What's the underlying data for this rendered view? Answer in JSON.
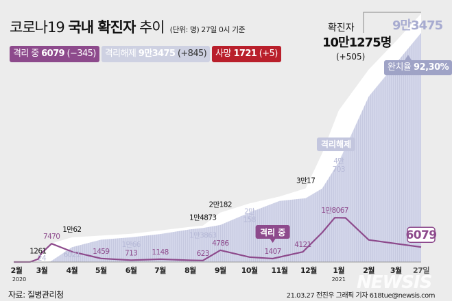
{
  "header": {
    "title_light": "코로나19",
    "title_bold": "국내 확진자",
    "title_tail": "추이",
    "unit": "(단위: 명) 27일 0시 기준"
  },
  "legend": {
    "isolating": {
      "label": "격리 중",
      "value": "6079",
      "change": "(−345)",
      "color": "#8d4a8c"
    },
    "released": {
      "label": "격리해제",
      "value": "9만3475",
      "change": "(+845)",
      "color": "#ced1e2"
    },
    "deaths": {
      "label": "사망",
      "value": "1721",
      "change": "(+5)",
      "color": "#b91f2b"
    }
  },
  "summary": {
    "confirmed_label": "확진자",
    "confirmed_value": "10만1275명",
    "confirmed_change": "(+505)",
    "released_value": "9만3475",
    "cure_rate_label": "완치율",
    "cure_rate_value": "92,30%"
  },
  "chart_data": {
    "type": "area",
    "x_ticks": [
      {
        "date": "2020-02-01",
        "label": "2월"
      },
      {
        "date": "2020-03-01",
        "label": "3월"
      },
      {
        "date": "2020-04-01",
        "label": "4월"
      },
      {
        "date": "2020-05-01",
        "label": "5월"
      },
      {
        "date": "2020-06-01",
        "label": "6월"
      },
      {
        "date": "2020-07-01",
        "label": "7월"
      },
      {
        "date": "2020-08-01",
        "label": "8월"
      },
      {
        "date": "2020-09-01",
        "label": "9월"
      },
      {
        "date": "2020-10-01",
        "label": "10월"
      },
      {
        "date": "2020-11-01",
        "label": "11월"
      },
      {
        "date": "2020-12-01",
        "label": "12월"
      },
      {
        "date": "2021-01-01",
        "label": "1월"
      },
      {
        "date": "2021-02-01",
        "label": "2월"
      },
      {
        "date": "2021-03-01",
        "label": "3월"
      },
      {
        "date": "2021-03-27",
        "label": "27일"
      }
    ],
    "year_labels": [
      {
        "date": "2020-02-01",
        "label": "2020"
      },
      {
        "date": "2021-01-01",
        "label": "2021"
      }
    ],
    "x_range": [
      "2020-02-01",
      "2021-03-27"
    ],
    "y_range": [
      0,
      101275
    ],
    "series": [
      {
        "key": "confirmed",
        "color": "#ffffff",
        "points": [
          [
            "2020-02-01",
            0
          ],
          [
            "2020-02-18",
            31
          ],
          [
            "2020-02-26",
            1261
          ],
          [
            "2020-03-01",
            3736
          ],
          [
            "2020-03-10",
            7513
          ],
          [
            "2020-04-01",
            10062
          ],
          [
            "2020-05-01",
            10774
          ],
          [
            "2020-06-01",
            11503
          ],
          [
            "2020-07-01",
            12850
          ],
          [
            "2020-08-01",
            14336
          ],
          [
            "2020-08-14",
            14873
          ],
          [
            "2020-09-01",
            20182
          ],
          [
            "2020-10-01",
            23889
          ],
          [
            "2020-11-01",
            26732
          ],
          [
            "2020-11-28",
            30017
          ],
          [
            "2020-12-15",
            44364
          ],
          [
            "2021-01-01",
            61769
          ],
          [
            "2021-02-01",
            78508
          ],
          [
            "2021-03-01",
            90029
          ],
          [
            "2021-03-27",
            101275
          ]
        ]
      },
      {
        "key": "released",
        "color": "#d3d6ea",
        "points": [
          [
            "2020-02-01",
            0
          ],
          [
            "2020-03-01",
            24
          ],
          [
            "2020-03-10",
            200
          ],
          [
            "2020-04-01",
            6021
          ],
          [
            "2020-05-01",
            9100
          ],
          [
            "2020-06-01",
            10066
          ],
          [
            "2020-07-01",
            11400
          ],
          [
            "2020-08-01",
            13300
          ],
          [
            "2020-08-14",
            13863
          ],
          [
            "2020-09-01",
            15100
          ],
          [
            "2020-10-01",
            20158
          ],
          [
            "2020-11-01",
            24900
          ],
          [
            "2020-11-28",
            26000
          ],
          [
            "2020-12-15",
            30000
          ],
          [
            "2021-01-01",
            40703
          ],
          [
            "2021-02-01",
            67500
          ],
          [
            "2021-03-01",
            81000
          ],
          [
            "2021-03-27",
            93475
          ]
        ]
      },
      {
        "key": "isolating",
        "color": "#8d4a8c",
        "points": [
          [
            "2020-02-01",
            0
          ],
          [
            "2020-02-18",
            19
          ],
          [
            "2020-02-26",
            1170
          ],
          [
            "2020-03-01",
            3700
          ],
          [
            "2020-03-11",
            7470
          ],
          [
            "2020-04-01",
            4200
          ],
          [
            "2020-05-01",
            1459
          ],
          [
            "2020-06-01",
            713
          ],
          [
            "2020-07-01",
            1148
          ],
          [
            "2020-08-01",
            700
          ],
          [
            "2020-08-14",
            623
          ],
          [
            "2020-09-01",
            4786
          ],
          [
            "2020-10-01",
            2000
          ],
          [
            "2020-10-25",
            1407
          ],
          [
            "2020-11-25",
            4121
          ],
          [
            "2020-12-15",
            12000
          ],
          [
            "2020-12-28",
            18067
          ],
          [
            "2021-01-08",
            18000
          ],
          [
            "2021-02-01",
            9000
          ],
          [
            "2021-03-01",
            7500
          ],
          [
            "2021-03-27",
            6079
          ]
        ]
      }
    ],
    "annotations": [
      {
        "series": "confirmed",
        "date": "2020-02-26",
        "text": "1261"
      },
      {
        "series": "confirmed",
        "date": "2020-04-01",
        "text": "1만62"
      },
      {
        "series": "confirmed",
        "date": "2020-08-14",
        "text": "1만4873"
      },
      {
        "series": "confirmed",
        "date": "2020-09-01",
        "text": "2만182"
      },
      {
        "series": "confirmed",
        "date": "2020-11-28",
        "text": "3만17"
      },
      {
        "series": "released",
        "date": "2020-03-01",
        "text": "24"
      },
      {
        "series": "released",
        "date": "2020-04-01",
        "text": "6021"
      },
      {
        "series": "released",
        "date": "2020-06-01",
        "text": "1만66"
      },
      {
        "series": "released",
        "date": "2020-08-14",
        "text": "1만3863"
      },
      {
        "series": "released",
        "date": "2020-10-01",
        "text": "2만\n158"
      },
      {
        "series": "released",
        "date": "2021-01-01",
        "text": "4만\n703"
      },
      {
        "series": "isolating",
        "date": "2020-03-11",
        "text": "7470"
      },
      {
        "series": "isolating",
        "date": "2020-05-01",
        "text": "1459"
      },
      {
        "series": "isolating",
        "date": "2020-06-01",
        "text": "713"
      },
      {
        "series": "isolating",
        "date": "2020-07-01",
        "text": "1148"
      },
      {
        "series": "isolating",
        "date": "2020-08-14",
        "text": "623"
      },
      {
        "series": "isolating",
        "date": "2020-09-01",
        "text": "4786"
      },
      {
        "series": "isolating",
        "date": "2020-10-25",
        "text": "1407"
      },
      {
        "series": "isolating",
        "date": "2020-11-25",
        "text": "4121"
      },
      {
        "series": "isolating",
        "date": "2020-12-28",
        "text": "1만8067"
      },
      {
        "series": "isolating",
        "date": "2021-03-27",
        "text": "6079"
      }
    ],
    "callouts": {
      "isolating": "격리 중",
      "released": "격리해제"
    }
  },
  "footer": {
    "source": "자료: 질병관리청",
    "credit": "21.03.27 전진우 그래픽 기자 618tue@newsis.com",
    "watermark": "NEWSIS"
  }
}
